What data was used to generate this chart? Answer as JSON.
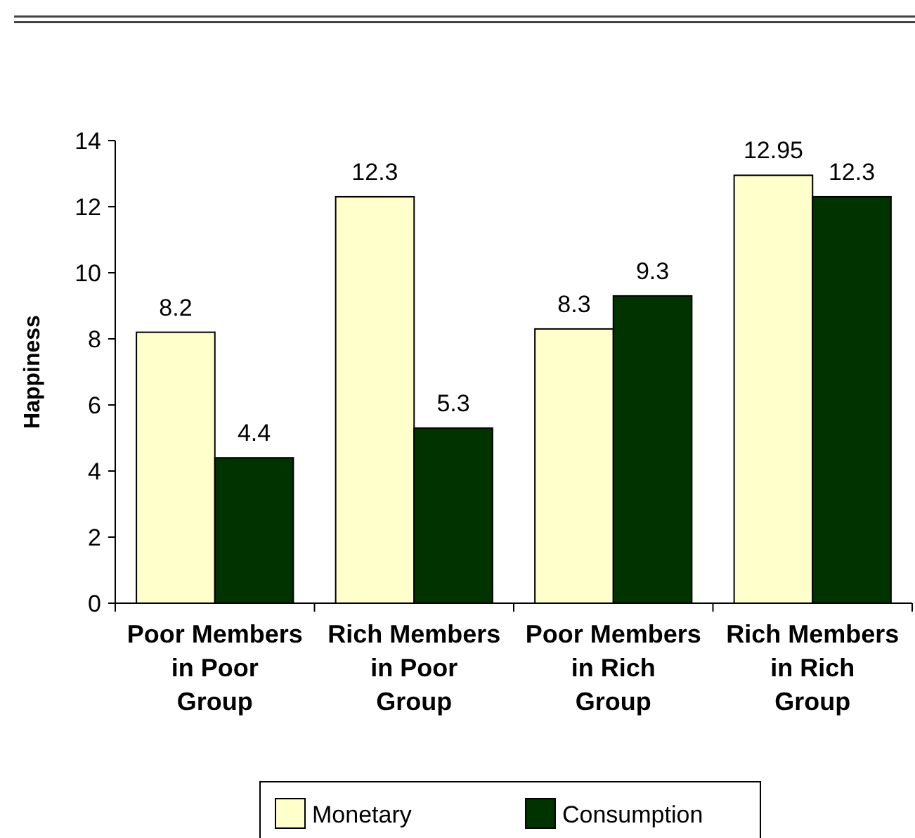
{
  "chart_data": {
    "type": "bar",
    "ylabel": "Happiness",
    "categories": [
      "Poor Members in Poor Group",
      "Rich Members in Poor Group",
      "Poor Members in Rich Group",
      "Rich Members in Rich Group"
    ],
    "series": [
      {
        "name": "Monetary",
        "color": "#ffffcc",
        "values": [
          8.2,
          12.3,
          8.3,
          12.95
        ]
      },
      {
        "name": "Consumption",
        "color": "#003300",
        "values": [
          4.4,
          5.3,
          9.3,
          12.3
        ]
      }
    ],
    "ylim": [
      0,
      14
    ],
    "yticks": [
      0,
      2,
      4,
      6,
      8,
      10,
      12,
      14
    ],
    "data_labels": true,
    "legend": "bottom",
    "grid": false
  }
}
